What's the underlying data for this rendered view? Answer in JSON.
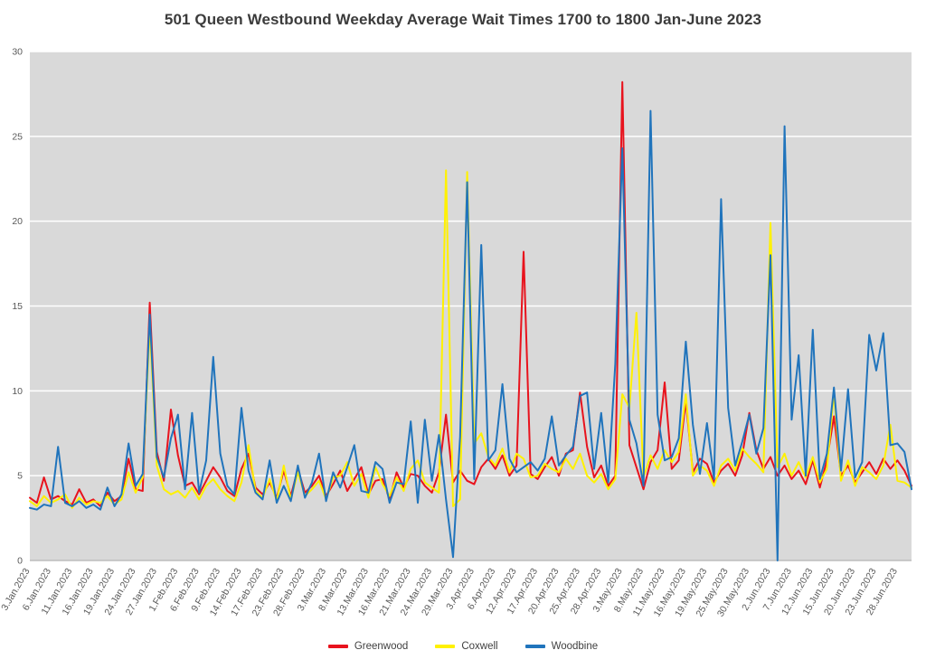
{
  "page": {
    "background": "#ffffff"
  },
  "chart_data": {
    "type": "line",
    "title": "501 Queen Westbound Weekday Average Wait Times 1700 to 1800 Jan-June 2023",
    "xlabel": "",
    "ylabel": "",
    "ylim": [
      0,
      30
    ],
    "y_ticks": [
      0,
      5,
      10,
      15,
      20,
      25,
      30
    ],
    "x_tick_interval": 3,
    "grid": true,
    "legend_position": "bottom",
    "plot_bg": "#d9d9d9",
    "grid_color": "#ffffff",
    "axis_text_color": "#595959",
    "x": [
      "3.Jan.2023",
      "4.Jan.2023",
      "5.Jan.2023",
      "6.Jan.2023",
      "9.Jan.2023",
      "10.Jan.2023",
      "11.Jan.2023",
      "12.Jan.2023",
      "13.Jan.2023",
      "16.Jan.2023",
      "17.Jan.2023",
      "18.Jan.2023",
      "19.Jan.2023",
      "20.Jan.2023",
      "23.Jan.2023",
      "24.Jan.2023",
      "25.Jan.2023",
      "26.Jan.2023",
      "27.Jan.2023",
      "30.Jan.2023",
      "31.Jan.2023",
      "1.Feb.2023",
      "2.Feb.2023",
      "3.Feb.2023",
      "6.Feb.2023",
      "7.Feb.2023",
      "8.Feb.2023",
      "9.Feb.2023",
      "10.Feb.2023",
      "13.Feb.2023",
      "14.Feb.2023",
      "15.Feb.2023",
      "16.Feb.2023",
      "17.Feb.2023",
      "21.Feb.2023",
      "22.Feb.2023",
      "23.Feb.2023",
      "24.Feb.2023",
      "27.Feb.2023",
      "28.Feb.2023",
      "1.Mar.2023",
      "2.Mar.2023",
      "3.Mar.2023",
      "6.Mar.2023",
      "7.Mar.2023",
      "8.Mar.2023",
      "9.Mar.2023",
      "10.Mar.2023",
      "13.Mar.2023",
      "14.Mar.2023",
      "15.Mar.2023",
      "16.Mar.2023",
      "17.Mar.2023",
      "20.Mar.2023",
      "21.Mar.2023",
      "22.Mar.2023",
      "23.Mar.2023",
      "24.Mar.2023",
      "27.Mar.2023",
      "28.Mar.2023",
      "29.Mar.2023",
      "30.Mar.2023",
      "31.Mar.2023",
      "3.Apr.2023",
      "4.Apr.2023",
      "5.Apr.2023",
      "6.Apr.2023",
      "10.Apr.2023",
      "11.Apr.2023",
      "12.Apr.2023",
      "13.Apr.2023",
      "14.Apr.2023",
      "17.Apr.2023",
      "18.Apr.2023",
      "19.Apr.2023",
      "20.Apr.2023",
      "21.Apr.2023",
      "24.Apr.2023",
      "25.Apr.2023",
      "26.Apr.2023",
      "27.Apr.2023",
      "28.Apr.2023",
      "1.May.2023",
      "2.May.2023",
      "3.May.2023",
      "4.May.2023",
      "5.May.2023",
      "8.May.2023",
      "9.May.2023",
      "10.May.2023",
      "11.May.2023",
      "12.May.2023",
      "15.May.2023",
      "16.May.2023",
      "17.May.2023",
      "18.May.2023",
      "19.May.2023",
      "23.May.2023",
      "24.May.2023",
      "25.May.2023",
      "26.May.2023",
      "29.May.2023",
      "30.May.2023",
      "31.May.2023",
      "1.Jun.2023",
      "2.Jun.2023",
      "5.Jun.2023",
      "6.Jun.2023",
      "7.Jun.2023",
      "8.Jun.2023",
      "9.Jun.2023",
      "12.Jun.2023",
      "13.Jun.2023",
      "14.Jun.2023",
      "15.Jun.2023",
      "16.Jun.2023",
      "19.Jun.2023",
      "20.Jun.2023",
      "21.Jun.2023",
      "22.Jun.2023",
      "23.Jun.2023",
      "26.Jun.2023",
      "27.Jun.2023",
      "28.Jun.2023",
      "29.Jun.2023",
      "30.Jun.2023"
    ],
    "series": [
      {
        "name": "Greenwood",
        "color": "#e8131d",
        "values": [
          3.7,
          3.4,
          4.9,
          3.6,
          3.8,
          3.5,
          3.3,
          4.2,
          3.4,
          3.6,
          3.2,
          4.0,
          3.5,
          3.8,
          6.0,
          4.2,
          4.1,
          15.2,
          6.4,
          4.7,
          8.9,
          6.2,
          4.4,
          4.6,
          3.9,
          4.7,
          5.5,
          4.9,
          4.1,
          3.8,
          5.4,
          6.3,
          4.3,
          3.9,
          4.6,
          3.7,
          5.3,
          3.8,
          5.4,
          4.0,
          4.4,
          5.0,
          3.8,
          4.5,
          5.3,
          4.1,
          4.8,
          5.5,
          3.9,
          4.7,
          4.8,
          3.6,
          5.2,
          4.3,
          5.1,
          5.0,
          4.4,
          4.0,
          5.2,
          8.6,
          4.6,
          5.3,
          4.7,
          4.5,
          5.5,
          6.0,
          5.4,
          6.2,
          5.0,
          5.6,
          18.2,
          5.1,
          4.8,
          5.5,
          6.1,
          5.0,
          6.3,
          6.5,
          9.9,
          6.7,
          4.9,
          5.6,
          4.4,
          5.0,
          28.2,
          6.8,
          5.5,
          4.2,
          5.8,
          6.5,
          10.5,
          5.4,
          5.9,
          9.4,
          5.2,
          6.0,
          5.7,
          4.6,
          5.3,
          5.7,
          5.0,
          6.2,
          8.7,
          6.5,
          5.4,
          6.1,
          5.0,
          5.6,
          4.8,
          5.3,
          4.5,
          5.9,
          4.3,
          5.9,
          8.5,
          5.0,
          5.6,
          4.6,
          5.2,
          5.8,
          5.1,
          6.0,
          5.4,
          5.9,
          5.3,
          4.4
        ]
      },
      {
        "name": "Coxwell",
        "color": "#fff100",
        "values": [
          3.5,
          3.2,
          3.8,
          3.4,
          3.6,
          3.9,
          3.1,
          3.7,
          3.3,
          3.5,
          3.4,
          3.8,
          3.3,
          3.6,
          5.2,
          4.0,
          4.9,
          13.8,
          5.6,
          4.2,
          3.9,
          4.1,
          3.7,
          4.3,
          3.6,
          4.4,
          4.8,
          4.2,
          3.8,
          3.5,
          4.6,
          6.8,
          4.1,
          3.7,
          4.8,
          3.5,
          5.6,
          3.6,
          5.2,
          3.8,
          4.2,
          4.7,
          3.6,
          4.9,
          5.0,
          5.8,
          4.4,
          5.1,
          3.7,
          5.5,
          4.5,
          3.8,
          4.9,
          4.1,
          5.4,
          5.9,
          4.6,
          4.3,
          4.0,
          23.0,
          3.2,
          3.6,
          22.9,
          6.9,
          7.5,
          6.1,
          5.6,
          6.6,
          5.2,
          6.3,
          6.0,
          4.9,
          5.0,
          5.7,
          5.4,
          5.2,
          6.0,
          5.4,
          6.3,
          5.0,
          4.6,
          5.1,
          4.2,
          4.8,
          9.8,
          9.0,
          14.6,
          4.9,
          6.2,
          5.4,
          6.5,
          5.8,
          6.4,
          9.8,
          5.0,
          5.6,
          5.3,
          4.4,
          5.6,
          6.0,
          5.3,
          6.6,
          6.1,
          5.7,
          5.2,
          19.9,
          5.5,
          6.3,
          5.0,
          5.8,
          4.9,
          6.1,
          4.6,
          5.4,
          9.9,
          4.7,
          5.9,
          4.4,
          5.5,
          5.2,
          4.8,
          5.6,
          8.0,
          4.7,
          4.6,
          4.3
        ]
      },
      {
        "name": "Woodbine",
        "color": "#2074bc",
        "values": [
          3.1,
          3.0,
          3.3,
          3.2,
          6.7,
          3.4,
          3.2,
          3.5,
          3.1,
          3.3,
          3.0,
          4.3,
          3.2,
          3.9,
          6.9,
          4.4,
          5.1,
          14.5,
          6.1,
          4.9,
          7.2,
          8.6,
          4.2,
          8.7,
          4.0,
          5.9,
          12.0,
          6.3,
          4.4,
          3.9,
          9.0,
          5.3,
          4.0,
          3.6,
          5.9,
          3.4,
          4.4,
          3.5,
          5.6,
          3.7,
          4.6,
          6.3,
          3.5,
          5.2,
          4.3,
          5.5,
          6.8,
          4.1,
          4.0,
          5.8,
          5.4,
          3.4,
          4.6,
          4.5,
          8.2,
          3.4,
          8.3,
          4.7,
          7.4,
          3.6,
          0.2,
          7.3,
          22.3,
          4.8,
          18.6,
          5.9,
          6.5,
          10.4,
          6.0,
          5.2,
          5.5,
          5.8,
          5.3,
          6.0,
          8.5,
          5.6,
          6.2,
          6.7,
          9.7,
          9.9,
          5.4,
          8.7,
          4.6,
          11.6,
          24.3,
          8.3,
          6.9,
          4.4,
          26.5,
          8.6,
          5.9,
          6.1,
          7.2,
          12.9,
          8.0,
          5.1,
          8.1,
          4.8,
          21.3,
          9.0,
          5.6,
          7.0,
          8.6,
          6.3,
          7.8,
          18.0,
          0.0,
          25.6,
          8.3,
          12.1,
          5.0,
          13.6,
          4.8,
          6.3,
          10.2,
          5.3,
          10.1,
          4.9,
          5.8,
          13.3,
          11.2,
          13.4,
          6.8,
          6.9,
          6.4,
          4.2
        ]
      }
    ]
  }
}
